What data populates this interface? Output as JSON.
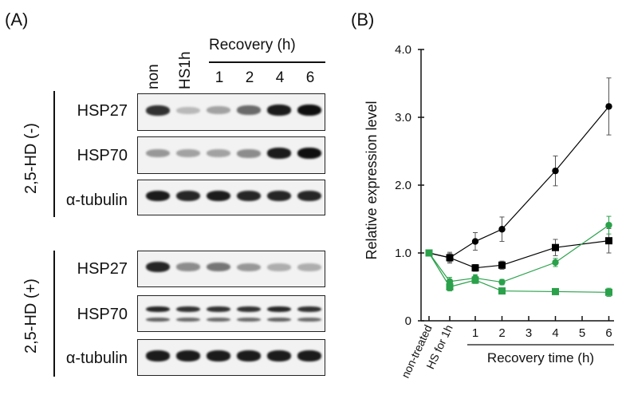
{
  "panel_a": {
    "label": "(A)",
    "lanes": [
      "non",
      "HS1h"
    ],
    "recovery_title": "Recovery (h)",
    "recovery_times": [
      "1",
      "2",
      "4",
      "6"
    ],
    "groups": [
      {
        "label": "2,5-HD (-)",
        "rows": [
          {
            "name": "HSP27",
            "intensities": [
              0.85,
              0.25,
              0.35,
              0.6,
              0.95,
              1.0
            ],
            "style": "single"
          },
          {
            "name": "HSP70",
            "intensities": [
              0.4,
              0.35,
              0.35,
              0.45,
              0.95,
              1.0
            ],
            "style": "single"
          },
          {
            "name": "α-tubulin",
            "intensities": [
              0.95,
              0.9,
              0.95,
              0.9,
              0.9,
              0.9
            ],
            "style": "single"
          }
        ]
      },
      {
        "label": "2,5-HD (+)",
        "rows": [
          {
            "name": "HSP27",
            "intensities": [
              0.9,
              0.45,
              0.55,
              0.4,
              0.3,
              0.3
            ],
            "style": "single"
          },
          {
            "name": "HSP70",
            "intensities": [
              0.9,
              0.85,
              0.85,
              0.85,
              0.9,
              0.85
            ],
            "style": "double"
          },
          {
            "name": "α-tubulin",
            "intensities": [
              0.95,
              0.95,
              0.95,
              0.95,
              0.95,
              0.95
            ],
            "style": "single"
          }
        ]
      }
    ]
  },
  "panel_b": {
    "label": "(B)"
  },
  "chart_data": {
    "type": "line",
    "ylabel": "Relative expression level",
    "xlabel": "Recovery time (h)",
    "ylim": [
      0,
      4.0
    ],
    "yticks": [
      "0",
      "1.0",
      "2.0",
      "3.0",
      "4.0"
    ],
    "x_special_labels": [
      "non-treated",
      "HS for 1h"
    ],
    "x_ticks": [
      "1",
      "2",
      "3",
      "4",
      "5",
      "6"
    ],
    "series": [
      {
        "marker": "circle",
        "color": "#000000",
        "points": [
          [
            -2,
            1.0
          ],
          [
            -1,
            0.93
          ],
          [
            1,
            1.17
          ],
          [
            2,
            1.35
          ],
          [
            4,
            2.21
          ],
          [
            6,
            3.16
          ]
        ],
        "errors": [
          0,
          0.08,
          0.13,
          0.18,
          0.22,
          0.42
        ]
      },
      {
        "marker": "square",
        "color": "#000000",
        "points": [
          [
            -2,
            1.0
          ],
          [
            -1,
            0.93
          ],
          [
            1,
            0.78
          ],
          [
            2,
            0.82
          ],
          [
            4,
            1.08
          ],
          [
            6,
            1.18
          ]
        ],
        "errors": [
          0,
          0.06,
          0.05,
          0.06,
          0.12,
          0.18
        ]
      },
      {
        "marker": "circle",
        "color": "#2aa14a",
        "points": [
          [
            -2,
            1.0
          ],
          [
            -1,
            0.58
          ],
          [
            1,
            0.63
          ],
          [
            2,
            0.57
          ],
          [
            4,
            0.86
          ],
          [
            6,
            1.41
          ]
        ],
        "errors": [
          0,
          0.06,
          0.05,
          0.04,
          0.06,
          0.13
        ]
      },
      {
        "marker": "square",
        "color": "#2aa14a",
        "points": [
          [
            -2,
            1.0
          ],
          [
            -1,
            0.5
          ],
          [
            1,
            0.6
          ],
          [
            2,
            0.44
          ],
          [
            4,
            0.43
          ],
          [
            6,
            0.42
          ]
        ],
        "errors": [
          0,
          0.06,
          0.05,
          0.04,
          0.04,
          0.06
        ]
      }
    ]
  }
}
